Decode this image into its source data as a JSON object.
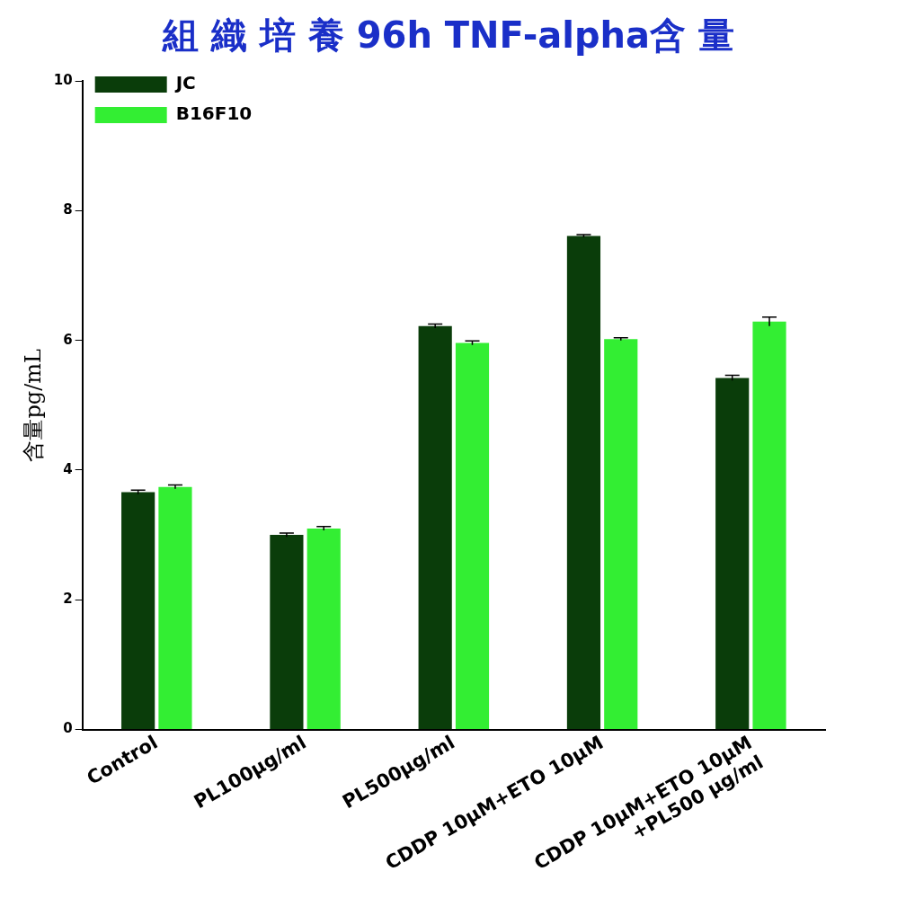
{
  "chart_data": {
    "type": "bar",
    "title": "組 織 培 養 96h TNF-alpha含 量",
    "ylabel": "含量pg/mL",
    "categories": [
      "Control",
      "PL100μg/ml",
      "PL500μg/ml",
      "CDDP 10μM+ETO 10μM",
      "CDDP 10μM+ETO 10μM\n+PL500 μg/ml"
    ],
    "series": [
      {
        "name": "JC",
        "color": "#0a3d0a",
        "values": [
          3.66,
          3.0,
          6.22,
          7.61,
          5.42
        ],
        "errors": [
          0.03,
          0.03,
          0.03,
          0.02,
          0.04
        ]
      },
      {
        "name": "B16F10",
        "color": "#33ee33",
        "values": [
          3.74,
          3.1,
          5.96,
          6.02,
          6.29
        ],
        "errors": [
          0.03,
          0.03,
          0.03,
          0.02,
          0.07
        ]
      }
    ],
    "ylim": [
      0,
      10
    ],
    "yticks": [
      0,
      2,
      4,
      6,
      8,
      10
    ],
    "grid": false,
    "legend": "top left"
  }
}
